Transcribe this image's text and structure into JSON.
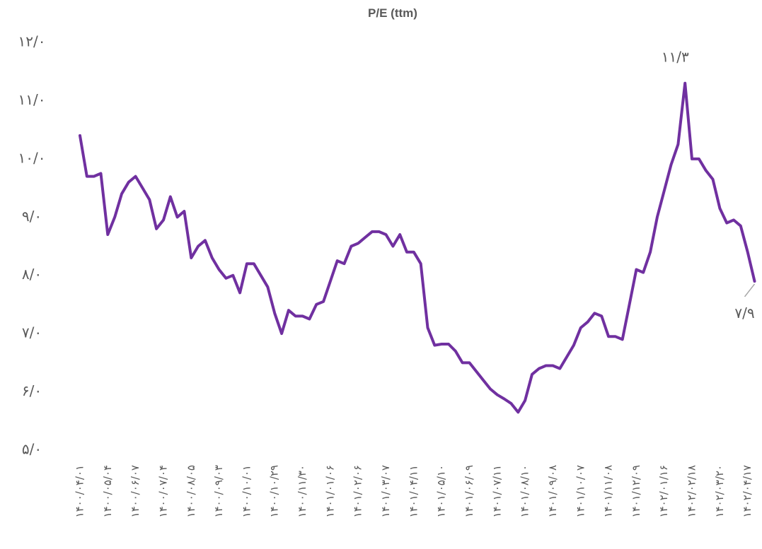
{
  "chart_data": {
    "type": "line",
    "title": "P/E (ttm)",
    "color": "#7030a0",
    "ylim": [
      5,
      12
    ],
    "yticks": [
      {
        "value": 5,
        "label": "۵/۰"
      },
      {
        "value": 6,
        "label": "۶/۰"
      },
      {
        "value": 7,
        "label": "۷/۰"
      },
      {
        "value": 8,
        "label": "۸/۰"
      },
      {
        "value": 9,
        "label": "۹/۰"
      },
      {
        "value": 10,
        "label": "۱۰/۰"
      },
      {
        "value": 11,
        "label": "۱۱/۰"
      },
      {
        "value": 12,
        "label": "۱۲/۰"
      }
    ],
    "categories": [
      "۱۴۰۰/۰۴/۰۱",
      null,
      null,
      null,
      "۱۴۰۰/۰۵/۰۴",
      null,
      null,
      null,
      "۱۴۰۰/۰۶/۰۷",
      null,
      null,
      null,
      "۱۴۰۰/۰۷/۰۴",
      null,
      null,
      null,
      "۱۴۰۰/۰۸/۰۵",
      null,
      null,
      null,
      "۱۴۰۰/۰۹/۰۳",
      null,
      null,
      null,
      "۱۴۰۰/۱۰/۰۱",
      null,
      null,
      null,
      "۱۴۰۰/۱۰/۲۹",
      null,
      null,
      null,
      "۱۴۰۰/۱۱/۳۰",
      null,
      null,
      null,
      "۱۴۰۱/۰۱/۰۶",
      null,
      null,
      null,
      "۱۴۰۱/۰۲/۰۶",
      null,
      null,
      null,
      "۱۴۰۱/۰۳/۰۷",
      null,
      null,
      null,
      "۱۴۰۱/۰۴/۱۱",
      null,
      null,
      null,
      "۱۴۰۱/۰۵/۱۰",
      null,
      null,
      null,
      "۱۴۰۱/۰۶/۰۹",
      null,
      null,
      null,
      "۱۴۰۱/۰۷/۱۱",
      null,
      null,
      null,
      "۱۴۰۱/۰۸/۱۰",
      null,
      null,
      null,
      "۱۴۰۱/۰۹/۰۸",
      null,
      null,
      null,
      "۱۴۰۱/۱۰/۰۷",
      null,
      null,
      null,
      "۱۴۰۱/۱۱/۰۸",
      null,
      null,
      null,
      "۱۴۰۱/۱۲/۰۹",
      null,
      null,
      null,
      "۱۴۰۲/۰۱/۱۶",
      null,
      null,
      null,
      "۱۴۰۲/۰۲/۱۸",
      null,
      null,
      null,
      "۱۴۰۲/۰۳/۲۰",
      null,
      null,
      null,
      "۱۴۰۲/۰۴/۱۷",
      null
    ],
    "values": [
      10.4,
      9.7,
      9.7,
      9.75,
      8.7,
      9.0,
      9.4,
      9.6,
      9.7,
      9.5,
      9.3,
      8.8,
      8.95,
      9.35,
      9.0,
      9.1,
      8.3,
      8.5,
      8.6,
      8.3,
      8.1,
      7.95,
      8.0,
      7.7,
      8.2,
      8.2,
      8.0,
      7.8,
      7.35,
      7.0,
      7.4,
      7.3,
      7.3,
      7.25,
      7.5,
      7.55,
      7.9,
      8.25,
      8.2,
      8.5,
      8.55,
      8.65,
      8.75,
      8.75,
      8.7,
      8.5,
      8.7,
      8.4,
      8.4,
      8.2,
      7.1,
      6.8,
      6.82,
      6.82,
      6.7,
      6.5,
      6.5,
      6.35,
      6.2,
      6.05,
      5.95,
      5.88,
      5.8,
      5.65,
      5.85,
      6.3,
      6.4,
      6.45,
      6.45,
      6.4,
      6.6,
      6.8,
      7.1,
      7.2,
      7.35,
      7.3,
      6.95,
      6.95,
      6.9,
      7.5,
      8.1,
      8.05,
      8.4,
      9.0,
      9.45,
      9.9,
      10.25,
      11.3,
      10.0,
      10.0,
      9.8,
      9.65,
      9.15,
      8.9,
      8.95,
      8.85,
      8.4,
      7.9
    ],
    "value_labels": [
      null,
      null,
      null,
      null,
      null,
      null,
      null,
      null,
      null,
      null,
      null,
      null,
      null,
      null,
      null,
      null,
      null,
      null,
      null,
      null,
      null,
      null,
      null,
      null,
      null,
      null,
      null,
      null,
      null,
      null,
      null,
      null,
      null,
      null,
      null,
      null,
      null,
      null,
      null,
      null,
      null,
      null,
      null,
      null,
      null,
      null,
      null,
      null,
      null,
      null,
      null,
      null,
      null,
      null,
      null,
      null,
      null,
      null,
      null,
      null,
      null,
      null,
      null,
      null,
      null,
      null,
      null,
      null,
      null,
      null,
      null,
      null,
      null,
      null,
      null,
      null,
      null,
      null,
      null,
      null,
      null,
      null,
      null,
      null,
      null,
      null,
      null,
      "۱۱/۳",
      null,
      null,
      null,
      null,
      null,
      null,
      null,
      null,
      null,
      "۷/۹"
    ]
  }
}
